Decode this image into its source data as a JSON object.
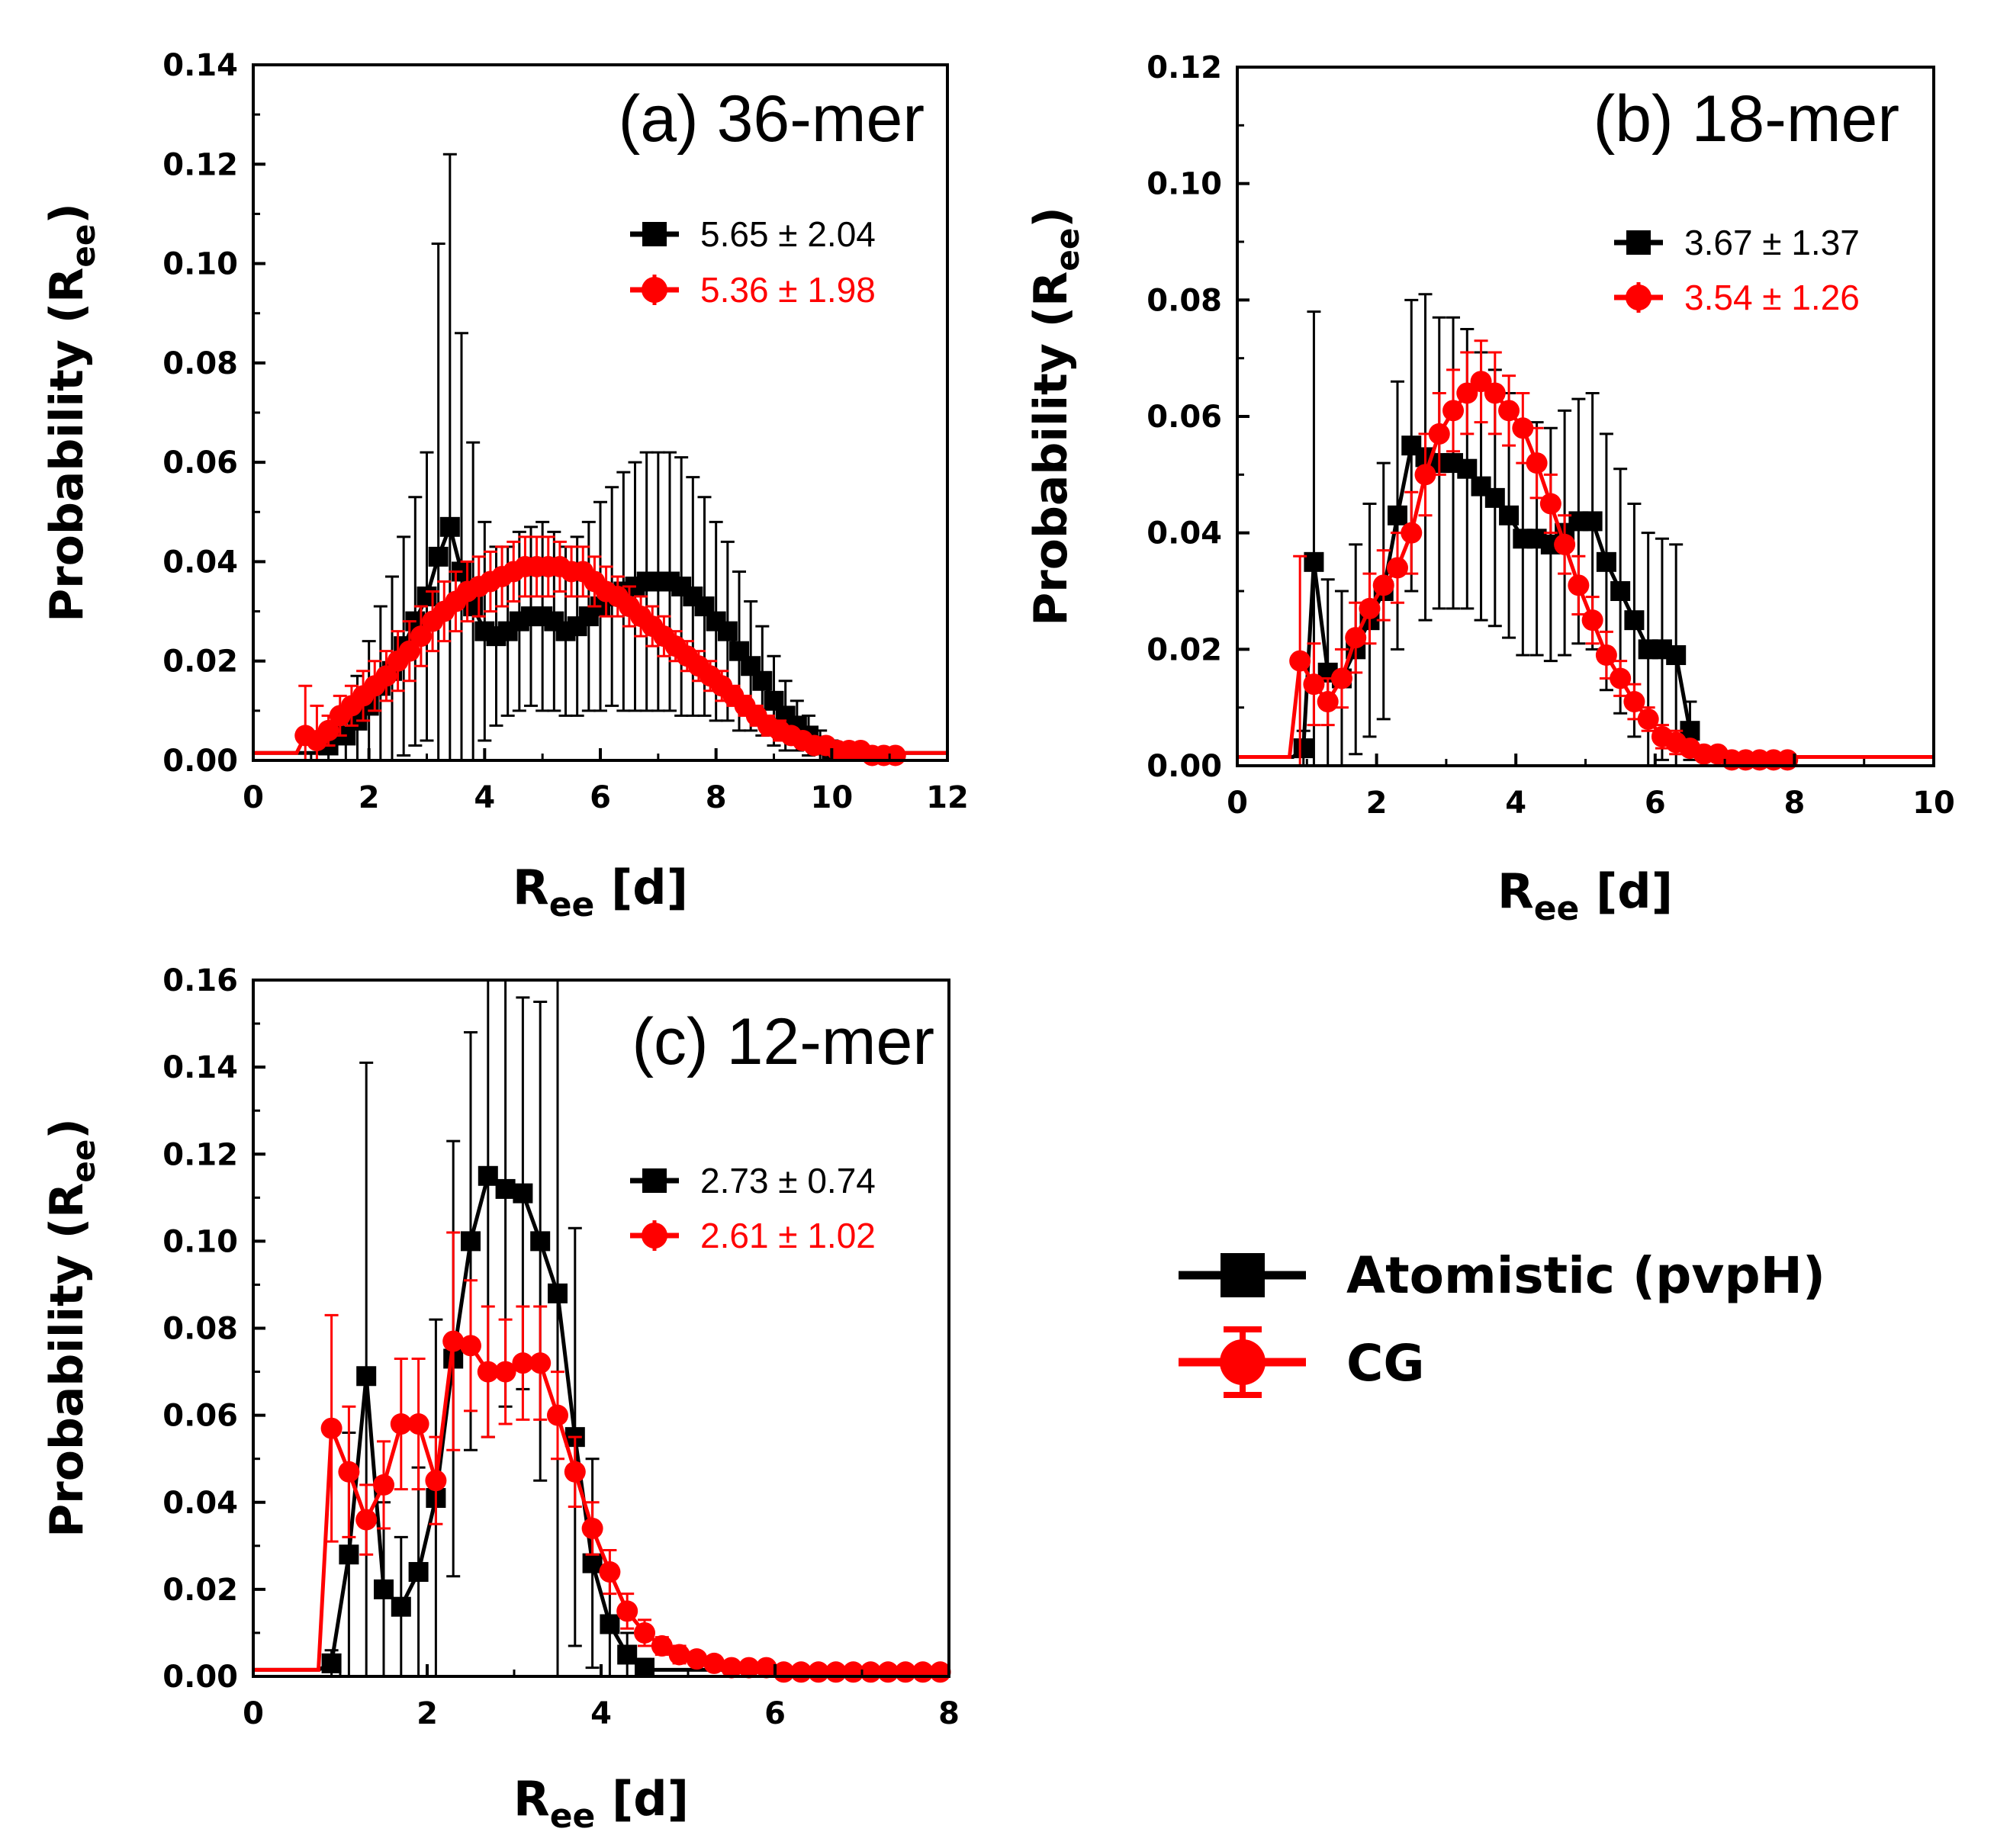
{
  "colors": {
    "atomistic": "#000000",
    "cg": "#ff0000"
  },
  "legend": {
    "items": [
      {
        "label": "Atomistic (pvpH)",
        "color": "#000000",
        "marker": "square"
      },
      {
        "label": "CG",
        "color": "#ff0000",
        "marker": "circle"
      }
    ]
  },
  "chart_data": [
    {
      "id": "a",
      "type": "line",
      "title": "(a) 36-mer",
      "xlabel_main": "R",
      "xlabel_sub": "ee",
      "xlabel_tail": " [d]",
      "ylabel_main": "Probability (R",
      "ylabel_sub": "ee",
      "ylabel_tail": ")",
      "xlim": [
        0,
        12
      ],
      "ylim": [
        0,
        0.14
      ],
      "xticks": [
        0,
        2,
        4,
        6,
        8,
        10,
        12
      ],
      "xtick_labels": [
        "0",
        "2",
        "4",
        "6",
        "8",
        "10",
        "12"
      ],
      "yticks": [
        0,
        0.02,
        0.04,
        0.06,
        0.08,
        0.1,
        0.12,
        0.14
      ],
      "ytick_labels": [
        "0.00",
        "0.02",
        "0.04",
        "0.06",
        "0.08",
        "0.10",
        "0.12",
        "0.14"
      ],
      "stats": [
        "5.65 ± 2.04",
        "5.36 ± 1.98"
      ],
      "series": [
        {
          "name": "Atomistic (pvpH)",
          "x": [
            1.3,
            1.6,
            1.8,
            2.0,
            2.2,
            2.4,
            2.6,
            2.8,
            3.0,
            3.2,
            3.4,
            3.6,
            3.8,
            4.0,
            4.2,
            4.4,
            4.6,
            4.8,
            5.0,
            5.2,
            5.4,
            5.6,
            5.8,
            6.0,
            6.2,
            6.4,
            6.6,
            6.8,
            7.0,
            7.2,
            7.4,
            7.6,
            7.8,
            8.0,
            8.2,
            8.4,
            8.6,
            8.8,
            9.0,
            9.2,
            9.4,
            9.6,
            9.8,
            10.0
          ],
          "y": [
            0.003,
            0.005,
            0.008,
            0.011,
            0.015,
            0.018,
            0.023,
            0.028,
            0.033,
            0.041,
            0.047,
            0.038,
            0.031,
            0.026,
            0.025,
            0.026,
            0.028,
            0.029,
            0.029,
            0.028,
            0.026,
            0.027,
            0.029,
            0.031,
            0.033,
            0.034,
            0.035,
            0.036,
            0.036,
            0.036,
            0.035,
            0.033,
            0.031,
            0.028,
            0.026,
            0.022,
            0.019,
            0.016,
            0.012,
            0.009,
            0.007,
            0.005,
            0.003,
            0.002
          ],
          "err": [
            0.003,
            0.006,
            0.009,
            0.013,
            0.016,
            0.019,
            0.022,
            0.025,
            0.029,
            0.063,
            0.075,
            0.048,
            0.033,
            0.022,
            0.018,
            0.017,
            0.018,
            0.018,
            0.019,
            0.018,
            0.017,
            0.018,
            0.019,
            0.021,
            0.022,
            0.024,
            0.025,
            0.026,
            0.026,
            0.026,
            0.026,
            0.024,
            0.022,
            0.02,
            0.018,
            0.016,
            0.013,
            0.011,
            0.009,
            0.007,
            0.005,
            0.004,
            0.003,
            0.002
          ]
        },
        {
          "name": "CG",
          "x": [
            0.9,
            1.1,
            1.3,
            1.5,
            1.7,
            1.9,
            2.1,
            2.3,
            2.5,
            2.7,
            2.9,
            3.1,
            3.3,
            3.5,
            3.7,
            3.9,
            4.1,
            4.3,
            4.5,
            4.7,
            4.9,
            5.1,
            5.3,
            5.5,
            5.7,
            5.9,
            6.1,
            6.3,
            6.5,
            6.7,
            6.9,
            7.1,
            7.3,
            7.5,
            7.7,
            7.9,
            8.1,
            8.3,
            8.5,
            8.7,
            8.9,
            9.1,
            9.3,
            9.5,
            9.7,
            9.9,
            10.1,
            10.3,
            10.5,
            10.7,
            10.9,
            11.1
          ],
          "y": [
            0.005,
            0.004,
            0.006,
            0.009,
            0.011,
            0.013,
            0.015,
            0.017,
            0.02,
            0.022,
            0.025,
            0.028,
            0.03,
            0.032,
            0.034,
            0.035,
            0.036,
            0.037,
            0.038,
            0.039,
            0.039,
            0.039,
            0.039,
            0.038,
            0.038,
            0.036,
            0.034,
            0.033,
            0.031,
            0.029,
            0.027,
            0.025,
            0.023,
            0.021,
            0.019,
            0.017,
            0.015,
            0.013,
            0.011,
            0.009,
            0.007,
            0.006,
            0.005,
            0.004,
            0.003,
            0.003,
            0.002,
            0.002,
            0.002,
            0.001,
            0.001,
            0.001
          ],
          "err": [
            0.01,
            0.007,
            0.003,
            0.004,
            0.004,
            0.005,
            0.005,
            0.005,
            0.006,
            0.006,
            0.006,
            0.006,
            0.006,
            0.006,
            0.006,
            0.006,
            0.006,
            0.006,
            0.006,
            0.006,
            0.006,
            0.006,
            0.005,
            0.005,
            0.005,
            0.005,
            0.005,
            0.004,
            0.004,
            0.004,
            0.004,
            0.004,
            0.003,
            0.003,
            0.003,
            0.003,
            0.003,
            0.002,
            0.002,
            0.002,
            0.002,
            0.002,
            0.001,
            0.001,
            0.001,
            0.001,
            0.001,
            0.001,
            0.001,
            0.001,
            0.001,
            0.001
          ]
        }
      ]
    },
    {
      "id": "b",
      "type": "line",
      "title": "(b) 18-mer",
      "xlabel_main": "R",
      "xlabel_sub": "ee",
      "xlabel_tail": " [d]",
      "ylabel_main": "Probability (R",
      "ylabel_sub": "ee",
      "ylabel_tail": ")",
      "xlim": [
        0,
        10
      ],
      "ylim": [
        0,
        0.12
      ],
      "xticks": [
        0,
        2,
        4,
        6,
        8,
        10
      ],
      "xtick_labels": [
        "0",
        "2",
        "4",
        "6",
        "8",
        "10"
      ],
      "yticks": [
        0,
        0.02,
        0.04,
        0.06,
        0.08,
        0.1,
        0.12
      ],
      "ytick_labels": [
        "0.00",
        "0.02",
        "0.04",
        "0.06",
        "0.08",
        "0.10",
        "0.12"
      ],
      "stats": [
        "3.67 ± 1.37",
        "3.54 ± 1.26"
      ],
      "series": [
        {
          "name": "Atomistic (pvpH)",
          "x": [
            0.95,
            1.1,
            1.3,
            1.5,
            1.7,
            1.9,
            2.1,
            2.3,
            2.5,
            2.7,
            2.9,
            3.1,
            3.3,
            3.5,
            3.7,
            3.9,
            4.1,
            4.3,
            4.5,
            4.7,
            4.9,
            5.1,
            5.3,
            5.5,
            5.7,
            5.9,
            6.1,
            6.3,
            6.5
          ],
          "y": [
            0.003,
            0.035,
            0.016,
            0.015,
            0.02,
            0.025,
            0.03,
            0.043,
            0.055,
            0.053,
            0.052,
            0.052,
            0.051,
            0.048,
            0.046,
            0.043,
            0.039,
            0.039,
            0.038,
            0.04,
            0.042,
            0.042,
            0.035,
            0.03,
            0.025,
            0.02,
            0.02,
            0.019,
            0.006
          ],
          "err": [
            0.003,
            0.043,
            0.016,
            0.015,
            0.018,
            0.02,
            0.022,
            0.023,
            0.025,
            0.028,
            0.025,
            0.025,
            0.024,
            0.023,
            0.022,
            0.021,
            0.02,
            0.02,
            0.02,
            0.021,
            0.021,
            0.022,
            0.022,
            0.021,
            0.02,
            0.02,
            0.019,
            0.019,
            0.005
          ]
        },
        {
          "name": "CG",
          "x": [
            0.9,
            1.1,
            1.3,
            1.5,
            1.7,
            1.9,
            2.1,
            2.3,
            2.5,
            2.7,
            2.9,
            3.1,
            3.3,
            3.5,
            3.7,
            3.9,
            4.1,
            4.3,
            4.5,
            4.7,
            4.9,
            5.1,
            5.3,
            5.5,
            5.7,
            5.9,
            6.1,
            6.3,
            6.5,
            6.7,
            6.9,
            7.1,
            7.3,
            7.5,
            7.7,
            7.9
          ],
          "y": [
            0.018,
            0.014,
            0.011,
            0.015,
            0.022,
            0.027,
            0.031,
            0.034,
            0.04,
            0.05,
            0.057,
            0.061,
            0.064,
            0.066,
            0.064,
            0.061,
            0.058,
            0.052,
            0.045,
            0.038,
            0.031,
            0.025,
            0.019,
            0.015,
            0.011,
            0.008,
            0.005,
            0.004,
            0.003,
            0.002,
            0.002,
            0.001,
            0.001,
            0.001,
            0.001,
            0.001
          ],
          "err": [
            0.018,
            0.007,
            0.004,
            0.005,
            0.006,
            0.006,
            0.006,
            0.006,
            0.007,
            0.007,
            0.007,
            0.007,
            0.007,
            0.007,
            0.007,
            0.006,
            0.006,
            0.006,
            0.005,
            0.005,
            0.005,
            0.004,
            0.004,
            0.003,
            0.003,
            0.002,
            0.002,
            0.002,
            0.001,
            0.001,
            0.001,
            0.001,
            0.001,
            0.001,
            0.001,
            0.001
          ]
        }
      ]
    },
    {
      "id": "c",
      "type": "line",
      "title": "(c) 12-mer",
      "xlabel_main": "R",
      "xlabel_sub": "ee",
      "xlabel_tail": " [d]",
      "ylabel_main": "Probability (R",
      "ylabel_sub": "ee",
      "ylabel_tail": ")",
      "xlim": [
        0,
        8
      ],
      "ylim": [
        0,
        0.16
      ],
      "xticks": [
        0,
        2,
        4,
        6,
        8
      ],
      "xtick_labels": [
        "0",
        "2",
        "4",
        "6",
        "8"
      ],
      "yticks": [
        0,
        0.02,
        0.04,
        0.06,
        0.08,
        0.1,
        0.12,
        0.14,
        0.16
      ],
      "ytick_labels": [
        "0.00",
        "0.02",
        "0.04",
        "0.06",
        "0.08",
        "0.10",
        "0.12",
        "0.14",
        "0.16"
      ],
      "stats": [
        "2.73 ± 0.74",
        "2.61 ± 1.02"
      ],
      "series": [
        {
          "name": "Atomistic (pvpH)",
          "x": [
            0.9,
            1.1,
            1.3,
            1.5,
            1.7,
            1.9,
            2.1,
            2.3,
            2.5,
            2.7,
            2.9,
            3.1,
            3.3,
            3.5,
            3.7,
            3.9,
            4.1,
            4.3,
            4.5
          ],
          "y": [
            0.003,
            0.028,
            0.069,
            0.02,
            0.016,
            0.024,
            0.041,
            0.073,
            0.1,
            0.115,
            0.112,
            0.111,
            0.1,
            0.088,
            0.055,
            0.026,
            0.012,
            0.005,
            0.002
          ],
          "err": [
            0.003,
            0.028,
            0.072,
            0.02,
            0.016,
            0.024,
            0.041,
            0.05,
            0.048,
            0.06,
            0.05,
            0.045,
            0.055,
            0.088,
            0.048,
            0.024,
            0.012,
            0.005,
            0.002
          ]
        },
        {
          "name": "CG",
          "x": [
            0.9,
            1.1,
            1.3,
            1.5,
            1.7,
            1.9,
            2.1,
            2.3,
            2.5,
            2.7,
            2.9,
            3.1,
            3.3,
            3.5,
            3.7,
            3.9,
            4.1,
            4.3,
            4.5,
            4.7,
            4.9,
            5.1,
            5.3,
            5.5,
            5.7,
            5.9,
            6.1,
            6.3,
            6.5,
            6.7,
            6.9,
            7.1,
            7.3,
            7.5,
            7.7,
            7.9
          ],
          "y": [
            0.057,
            0.047,
            0.036,
            0.044,
            0.058,
            0.058,
            0.045,
            0.077,
            0.076,
            0.07,
            0.07,
            0.072,
            0.072,
            0.06,
            0.047,
            0.034,
            0.024,
            0.015,
            0.01,
            0.007,
            0.005,
            0.004,
            0.003,
            0.002,
            0.002,
            0.002,
            0.001,
            0.001,
            0.001,
            0.001,
            0.001,
            0.001,
            0.001,
            0.001,
            0.001,
            0.001
          ],
          "err": [
            0.026,
            0.015,
            0.008,
            0.01,
            0.015,
            0.015,
            0.01,
            0.025,
            0.015,
            0.015,
            0.012,
            0.013,
            0.013,
            0.01,
            0.008,
            0.006,
            0.005,
            0.004,
            0.003,
            0.002,
            0.002,
            0.001,
            0.001,
            0.001,
            0.001,
            0.001,
            0.001,
            0.001,
            0.001,
            0.001,
            0.001,
            0.001,
            0.001,
            0.001,
            0.001,
            0.001
          ]
        }
      ]
    }
  ]
}
